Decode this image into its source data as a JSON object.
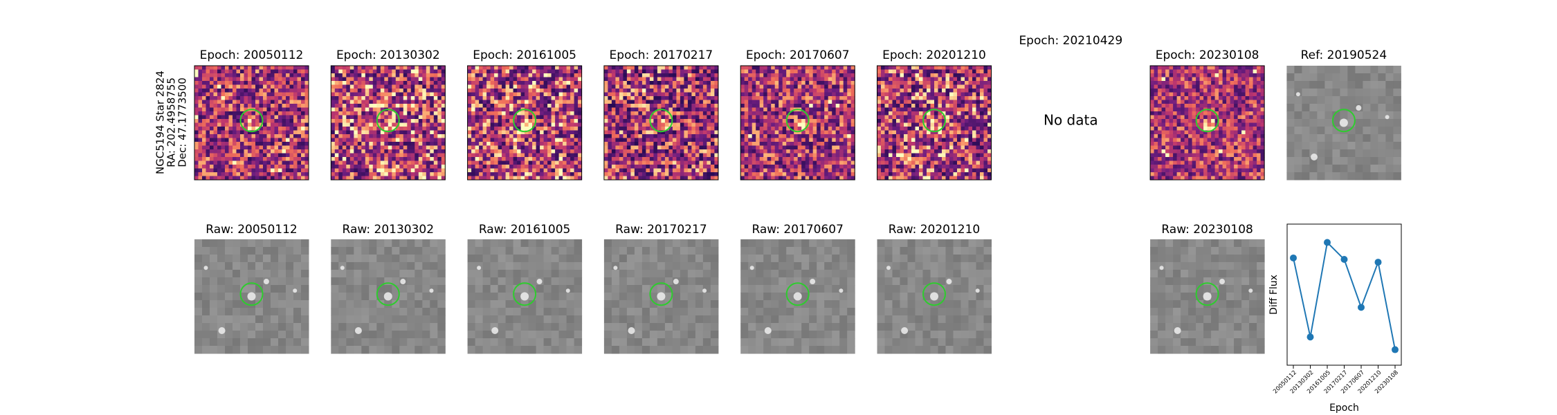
{
  "side_label": [
    "NGC5194 Star 2824",
    "RA: 202.4958755",
    "Dec: 47.1773500"
  ],
  "diff_panels": [
    {
      "title": "Epoch: 20050112"
    },
    {
      "title": "Epoch: 20130302"
    },
    {
      "title": "Epoch: 20161005"
    },
    {
      "title": "Epoch: 20170217"
    },
    {
      "title": "Epoch: 20170607"
    },
    {
      "title": "Epoch: 20201210"
    },
    {
      "title": "Epoch: 20210429",
      "message": "No data"
    },
    {
      "title": "Epoch: 20230108"
    }
  ],
  "ref_panel": {
    "title": "Ref: 20190524"
  },
  "raw_panels": [
    {
      "title": "Raw: 20050112"
    },
    {
      "title": "Raw: 20130302"
    },
    {
      "title": "Raw: 20161005"
    },
    {
      "title": "Raw: 20170217"
    },
    {
      "title": "Raw: 20170607"
    },
    {
      "title": "Raw: 20201210"
    },
    {
      "title": "Raw: 20230108"
    }
  ],
  "chart_data": {
    "type": "line",
    "xlabel": "Epoch",
    "ylabel": "Diff Flux",
    "categories": [
      "20050112",
      "20130302",
      "20161005",
      "20170217",
      "20170607",
      "20201210",
      "20230108"
    ],
    "series": [
      {
        "color": "#1f77b4",
        "values": [
          0.76,
          0.2,
          0.87,
          0.75,
          0.41,
          0.73,
          0.11
        ]
      }
    ],
    "ylim": [
      0,
      1
    ]
  }
}
